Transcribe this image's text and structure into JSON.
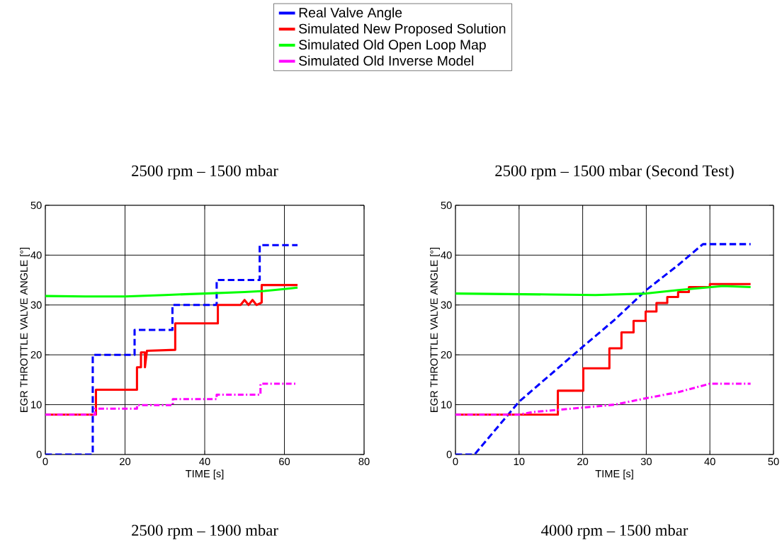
{
  "chart_data": [
    {
      "type": "line",
      "title": "2500 rpm – 1500 mbar",
      "xlabel": "TIME [s]",
      "ylabel": "EGR THROTTLE VALVE ANGLE [°]",
      "xlim": [
        0,
        80
      ],
      "xticks": [
        0,
        20,
        40,
        60,
        80
      ],
      "ylim": [
        0,
        50
      ],
      "yticks": [
        0,
        10,
        20,
        30,
        40,
        50
      ],
      "grid": true,
      "legend": "top",
      "annotations": [
        "2500 rpm – 1900 mbar"
      ],
      "series": [
        {
          "name": "Real Valve Angle",
          "color": "#0000ff",
          "line_style": "dashed",
          "x": [
            0,
            11.9,
            11.9,
            22.4,
            22.4,
            31.9,
            31.9,
            43,
            43,
            53.8,
            53.8,
            63.3
          ],
          "values": [
            0,
            0,
            20,
            20,
            25,
            25,
            30,
            30,
            35,
            35,
            42,
            42
          ]
        },
        {
          "name": "Simulated New Proposed Solution",
          "color": "#ff0000",
          "line_style": "solid",
          "x": [
            0,
            12.7,
            12.7,
            23,
            23,
            24,
            24,
            25,
            25,
            25.5,
            32.6,
            32.6,
            43.3,
            43.3,
            49,
            50,
            51,
            52,
            53,
            54.3,
            54.3,
            63.3
          ],
          "values": [
            8,
            8,
            13,
            13,
            17.5,
            17.5,
            20.5,
            20.5,
            17.5,
            20.8,
            21,
            26.3,
            26.3,
            30,
            30,
            31,
            30,
            31,
            30,
            30.5,
            34,
            34
          ]
        },
        {
          "name": "Simulated Old Open Loop Map",
          "color": "#00ff00",
          "line_style": "solid",
          "x": [
            0,
            10,
            20,
            30,
            40,
            50,
            55,
            60,
            63.3
          ],
          "values": [
            31.8,
            31.7,
            31.7,
            32,
            32.3,
            32.6,
            32.8,
            33.2,
            33.5
          ]
        },
        {
          "name": "Simulated Old Inverse Model",
          "color": "#ff00ff",
          "line_style": "dashdot",
          "x": [
            0,
            12.5,
            12.5,
            23,
            23,
            32,
            32,
            43,
            43,
            54,
            54,
            63.3
          ],
          "values": [
            8,
            8,
            9.2,
            9.2,
            9.9,
            9.9,
            11.1,
            11.1,
            12,
            12,
            14.2,
            14.2
          ]
        }
      ]
    },
    {
      "type": "line",
      "title": "2500 rpm – 1500 mbar (Second Test)",
      "xlabel": "TIME [s]",
      "ylabel": "EGR THROTTLE VALVE ANGLE [°]",
      "xlim": [
        0,
        50
      ],
      "xticks": [
        0,
        10,
        20,
        30,
        40,
        50
      ],
      "ylim": [
        0,
        50
      ],
      "yticks": [
        0,
        10,
        20,
        30,
        40,
        50
      ],
      "grid": true,
      "annotations": [
        "4000 rpm – 1500 mbar"
      ],
      "series": [
        {
          "color": "#0000ff",
          "line_style": "dashed",
          "x": [
            0,
            3,
            10,
            20,
            25,
            30,
            35,
            38.9,
            46.4
          ],
          "values": [
            0,
            0,
            10.6,
            21.6,
            27,
            33,
            38,
            42.2,
            42.2
          ]
        },
        {
          "color": "#ff0000",
          "line_style": "solid",
          "x": [
            0,
            16.1,
            16.1,
            20.1,
            20.1,
            24.2,
            24.2,
            26.1,
            26.1,
            28,
            28,
            29.9,
            29.9,
            31.6,
            31.6,
            33.3,
            33.3,
            35,
            35,
            36.7,
            36.7,
            40,
            40,
            46.4
          ],
          "values": [
            8,
            8,
            12.8,
            12.8,
            17.3,
            17.3,
            21.3,
            21.3,
            24.5,
            24.5,
            26.8,
            26.8,
            28.7,
            28.7,
            30.4,
            30.4,
            31.6,
            31.6,
            32.6,
            32.6,
            33.6,
            33.6,
            34.2,
            34.2
          ]
        },
        {
          "color": "#00ff00",
          "line_style": "solid",
          "x": [
            0,
            15,
            22,
            30,
            35,
            42,
            46.4
          ],
          "values": [
            32.3,
            32.1,
            32,
            32.3,
            33,
            33.8,
            33.6
          ]
        },
        {
          "color": "#ff00ff",
          "line_style": "dashdot",
          "x": [
            0,
            10,
            12,
            20,
            25,
            30,
            35,
            40,
            46.4
          ],
          "values": [
            8,
            8,
            8.5,
            9.4,
            10,
            11.3,
            12.5,
            14.2,
            14.2
          ]
        }
      ]
    }
  ]
}
